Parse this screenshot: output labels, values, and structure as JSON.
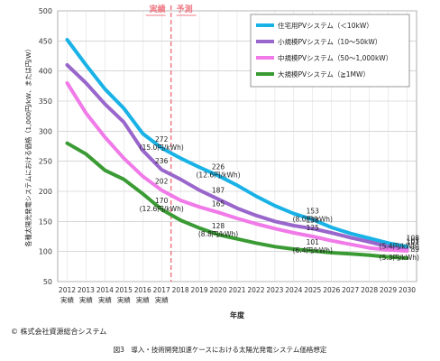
{
  "chart_data": {
    "type": "line",
    "ylabel": "各種太陽光発電システムにおける価格（1,000円/kW、または円/W）",
    "xlabel": "年度",
    "ylim": [
      50,
      500
    ],
    "yticks": [
      50,
      100,
      150,
      200,
      250,
      300,
      350,
      400,
      450,
      500
    ],
    "grid": true,
    "legend_position": "top-right",
    "categories": [
      "2012",
      "2013",
      "2014",
      "2015",
      "2016",
      "2017",
      "2018",
      "2019",
      "2020",
      "2021",
      "2022",
      "2023",
      "2024",
      "2025",
      "2026",
      "2027",
      "2028",
      "2029",
      "2030"
    ],
    "category_sublabels": [
      "実績",
      "実績",
      "実績",
      "実績",
      "実績",
      "実績",
      "",
      "",
      "",
      "",
      "",
      "",
      "",
      "",
      "",
      "",
      "",
      "",
      ""
    ],
    "divider": {
      "at": 2017.5,
      "left_label": "実績",
      "right_label": "予測",
      "color": "#f07a86"
    },
    "series": [
      {
        "name": "住宅用PVシステム（＜10kW）",
        "color": "#19b2e6",
        "values": [
          452,
          410,
          370,
          338,
          296,
          272,
          255,
          240,
          226,
          210,
          192,
          176,
          163,
          153,
          140,
          130,
          122,
          114,
          108
        ]
      },
      {
        "name": "小規模PVシステム（10〜50kW）",
        "color": "#9966cc",
        "values": [
          410,
          380,
          345,
          315,
          268,
          236,
          220,
          202,
          187,
          172,
          160,
          150,
          143,
          138,
          131,
          123,
          116,
          108,
          103
        ]
      },
      {
        "name": "中規模PVシステム（50〜1,000kW）",
        "color": "#f07ae8",
        "values": [
          380,
          330,
          290,
          255,
          225,
          202,
          185,
          174,
          165,
          155,
          146,
          138,
          131,
          125,
          118,
          112,
          106,
          103,
          101
        ]
      },
      {
        "name": "大規模PVシステム（≧1MW）",
        "color": "#3a9b34",
        "values": [
          280,
          262,
          235,
          220,
          196,
          170,
          152,
          139,
          128,
          121,
          114,
          108,
          104,
          101,
          98,
          96,
          94,
          91,
          89
        ]
      }
    ],
    "annotations": [
      {
        "x": "2017",
        "text": "272",
        "sub": "(15.0円/kWh)"
      },
      {
        "x": "2017",
        "text": "236",
        "sub": ""
      },
      {
        "x": "2017",
        "text": "202",
        "sub": ""
      },
      {
        "x": "2017",
        "text": "170",
        "sub": "(12.6円/kWh)"
      },
      {
        "x": "2020",
        "text": "226",
        "sub": "(12.6円/kWh)"
      },
      {
        "x": "2020",
        "text": "187",
        "sub": ""
      },
      {
        "x": "2020",
        "text": "165",
        "sub": ""
      },
      {
        "x": "2020",
        "text": "128",
        "sub": "(8.8円/kWh)"
      },
      {
        "x": "2025",
        "text": "153",
        "sub": "(8.0円/kWh)"
      },
      {
        "x": "2025",
        "text": "138",
        "sub": ""
      },
      {
        "x": "2025",
        "text": "125",
        "sub": ""
      },
      {
        "x": "2025",
        "text": "101",
        "sub": "(6.4円/kWh)"
      },
      {
        "x": "2030",
        "text": "108",
        "sub": "(5.4円/kWh)"
      },
      {
        "x": "2030",
        "text": "103",
        "sub": ""
      },
      {
        "x": "2030",
        "text": "101",
        "sub": ""
      },
      {
        "x": "2030",
        "text": "89",
        "sub": "(5.3円/kWh)"
      }
    ]
  },
  "footer": {
    "copyright": "© 株式会社資源総合システム",
    "caption": "図3　導入・技術開発加速ケースにおける太陽光発電システム価格想定"
  }
}
